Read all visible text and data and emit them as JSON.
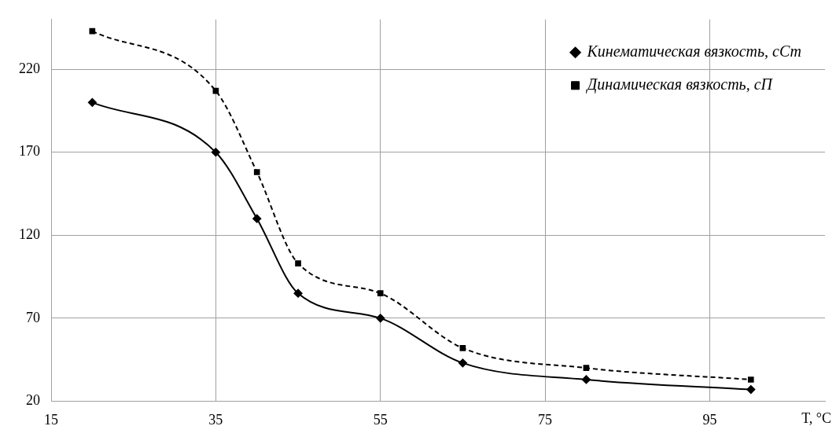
{
  "chart_data": {
    "type": "line",
    "xlabel": "T, °C",
    "xlim": [
      15,
      109
    ],
    "xticks": [
      15,
      35,
      55,
      75,
      95
    ],
    "ylim": [
      20,
      250
    ],
    "yticks": [
      20,
      70,
      120,
      170,
      220
    ],
    "grid": true,
    "legend": "top right",
    "series": [
      {
        "name": "Кинематическая вязкость, сСт",
        "color": "#000000",
        "marker": "diamond",
        "line_style": "solid",
        "x": [
          20,
          35,
          40,
          45,
          55,
          65,
          80,
          100
        ],
        "values": [
          200,
          170,
          130,
          85,
          70,
          43,
          33,
          27
        ]
      },
      {
        "name": "Динамическая вязкость, сП",
        "color": "#000000",
        "marker": "square",
        "line_style": "dashed",
        "x": [
          20,
          35,
          40,
          45,
          55,
          65,
          80,
          100
        ],
        "values": [
          243,
          207,
          158,
          103,
          85,
          52,
          40,
          33
        ]
      }
    ]
  }
}
